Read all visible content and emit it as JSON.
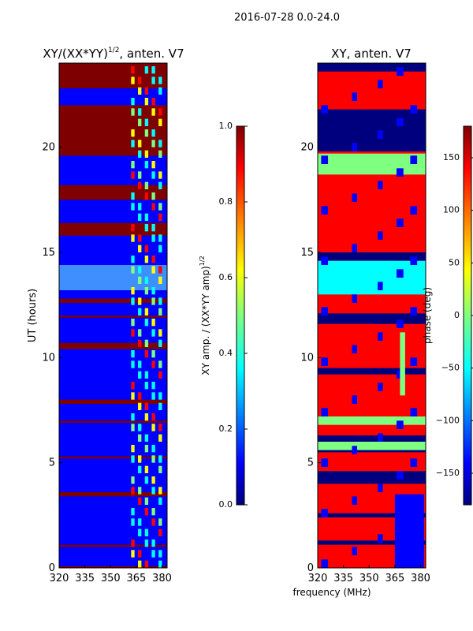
{
  "figure": {
    "suptitle": "2016-07-28 0.0-24.0",
    "shared_xlabel": "frequency (MHz)"
  },
  "chart_data": [
    {
      "type": "heatmap",
      "title_main": "XY/(XX*YY)",
      "title_sup": "1/2",
      "title_suffix": ", anten. V7",
      "ylabel": "UT (hours)",
      "x_ticks": [
        320,
        335,
        350,
        365,
        380
      ],
      "x_range": [
        320,
        383
      ],
      "y_ticks": [
        0,
        5,
        10,
        15,
        20
      ],
      "y_range": [
        0,
        24
      ],
      "colorbar": {
        "label_main": "XY amp. / (XX*YY amp)",
        "label_sup": "1/2",
        "ticks": [
          "0.0",
          "0.2",
          "0.4",
          "0.6",
          "0.8",
          "1.0"
        ],
        "range": [
          0.0,
          1.0
        ]
      }
    },
    {
      "type": "heatmap",
      "title_main": "XY, anten. V7",
      "ylabel": "",
      "x_ticks": [
        320,
        335,
        350,
        365,
        380
      ],
      "x_range": [
        320,
        383
      ],
      "y_ticks": [
        0,
        5,
        10,
        15,
        20
      ],
      "y_range": [
        0,
        24
      ],
      "colorbar": {
        "label_main": "phase (deg)",
        "ticks": [
          "−150",
          "−100",
          "−50",
          "0",
          "50",
          "100",
          "150"
        ],
        "tick_values": [
          -150,
          -100,
          -50,
          0,
          50,
          100,
          150
        ],
        "range": [
          -180,
          180
        ]
      }
    }
  ],
  "colors": {
    "jet_low": "#00007f",
    "jet_blue": "#0000ff",
    "jet_cyan": "#00ffff",
    "jet_green": "#7fff7f",
    "jet_yellow": "#ffff00",
    "jet_red": "#ff0000",
    "jet_high": "#7f0000"
  }
}
